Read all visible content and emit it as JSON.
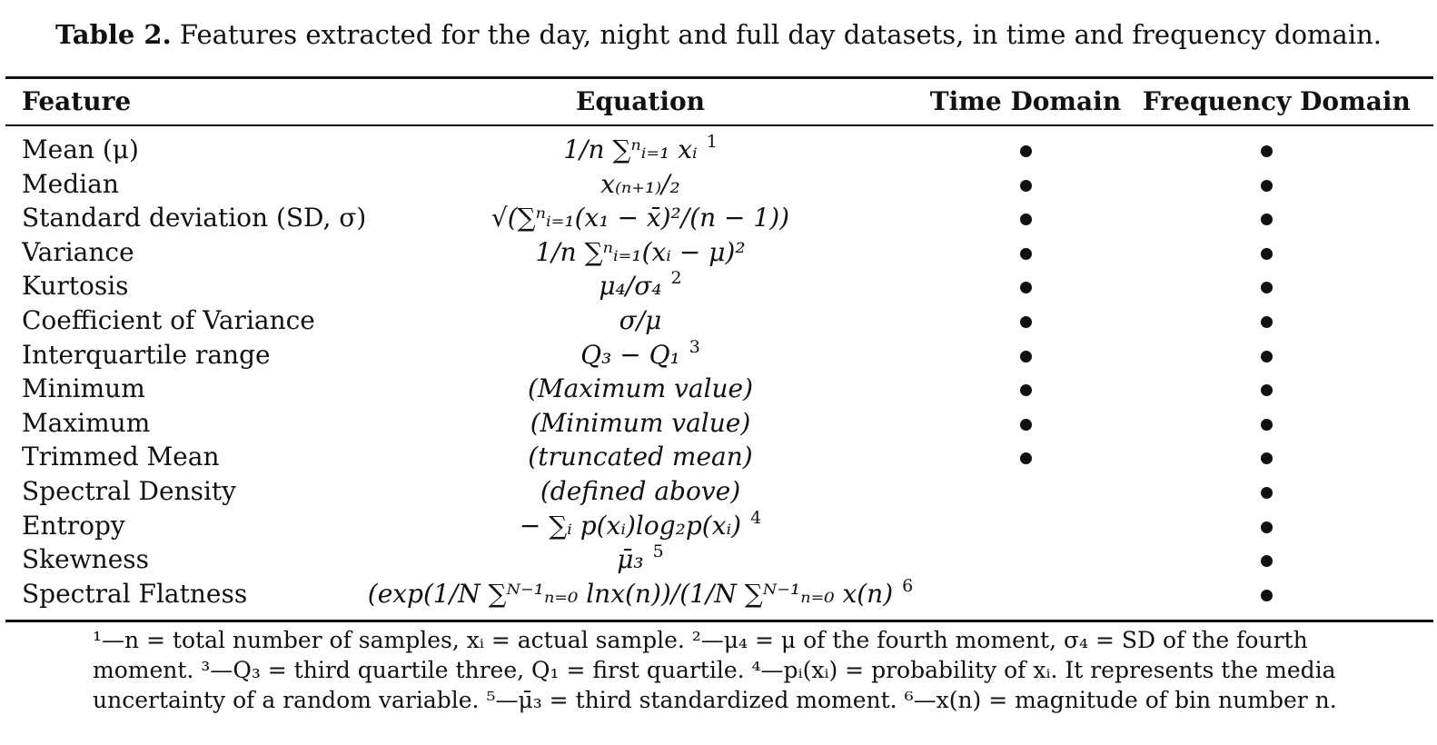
{
  "caption": {
    "label": "Table 2.",
    "text": "Features extracted for the day, night and full day datasets, in time and frequency domain."
  },
  "table": {
    "headers": {
      "feature": "Feature",
      "equation": "Equation",
      "time": "Time Domain",
      "frequency": "Frequency Domain"
    },
    "rows": [
      {
        "feature": "Mean (μ)",
        "equation": "1/n ∑ⁿᵢ₌₁ xᵢ",
        "footnote": "1",
        "time": true,
        "frequency": true
      },
      {
        "feature": "Median",
        "equation": "x₍ₙ₊₁₎/₂",
        "footnote": "",
        "time": true,
        "frequency": true
      },
      {
        "feature": "Standard deviation (SD, σ)",
        "equation": "√(∑ⁿᵢ₌₁(x₁ − x̄)²/(n − 1))",
        "footnote": "",
        "time": true,
        "frequency": true
      },
      {
        "feature": "Variance",
        "equation": "1/n ∑ⁿᵢ₌₁(xᵢ − μ)²",
        "footnote": "",
        "time": true,
        "frequency": true
      },
      {
        "feature": "Kurtosis",
        "equation": "μ₄/σ₄",
        "footnote": "2",
        "time": true,
        "frequency": true
      },
      {
        "feature": "Coefficient of Variance",
        "equation": "σ/μ",
        "footnote": "",
        "time": true,
        "frequency": true
      },
      {
        "feature": "Interquartile range",
        "equation": "Q₃ − Q₁",
        "footnote": "3",
        "time": true,
        "frequency": true
      },
      {
        "feature": "Minimum",
        "equation": "(Maximum value)",
        "footnote": "",
        "time": true,
        "frequency": true
      },
      {
        "feature": "Maximum",
        "equation": "(Minimum value)",
        "footnote": "",
        "time": true,
        "frequency": true
      },
      {
        "feature": "Trimmed Mean",
        "equation": "(truncated mean)",
        "footnote": "",
        "time": true,
        "frequency": true
      },
      {
        "feature": "Spectral Density",
        "equation": "(defined above)",
        "footnote": "",
        "time": false,
        "frequency": true
      },
      {
        "feature": "Entropy",
        "equation": "− ∑ᵢ p(xᵢ)log₂p(xᵢ)",
        "footnote": "4",
        "time": false,
        "frequency": true
      },
      {
        "feature": "Skewness",
        "equation": "μ̄₃",
        "footnote": "5",
        "time": false,
        "frequency": true
      },
      {
        "feature": "Spectral Flatness",
        "equation": "(exp(1/N ∑ᴺ⁻¹ₙ₌₀ lnx(n))/(1/N ∑ᴺ⁻¹ₙ₌₀ x(n)",
        "footnote": "6",
        "time": false,
        "frequency": true
      }
    ]
  },
  "footnotes": [
    "¹—n = total number of samples, xᵢ = actual sample. ²—μ₄ = μ of the fourth moment, σ₄ = SD of the fourth",
    "moment. ³—Q₃ = third quartile three, Q₁ = first quartile. ⁴—pᵢ(xᵢ) = probability of xᵢ. It represents the media",
    "uncertainty of a random variable. ⁵—μ̄₃ = third standardized moment. ⁶—x(n) = magnitude of bin number n."
  ]
}
